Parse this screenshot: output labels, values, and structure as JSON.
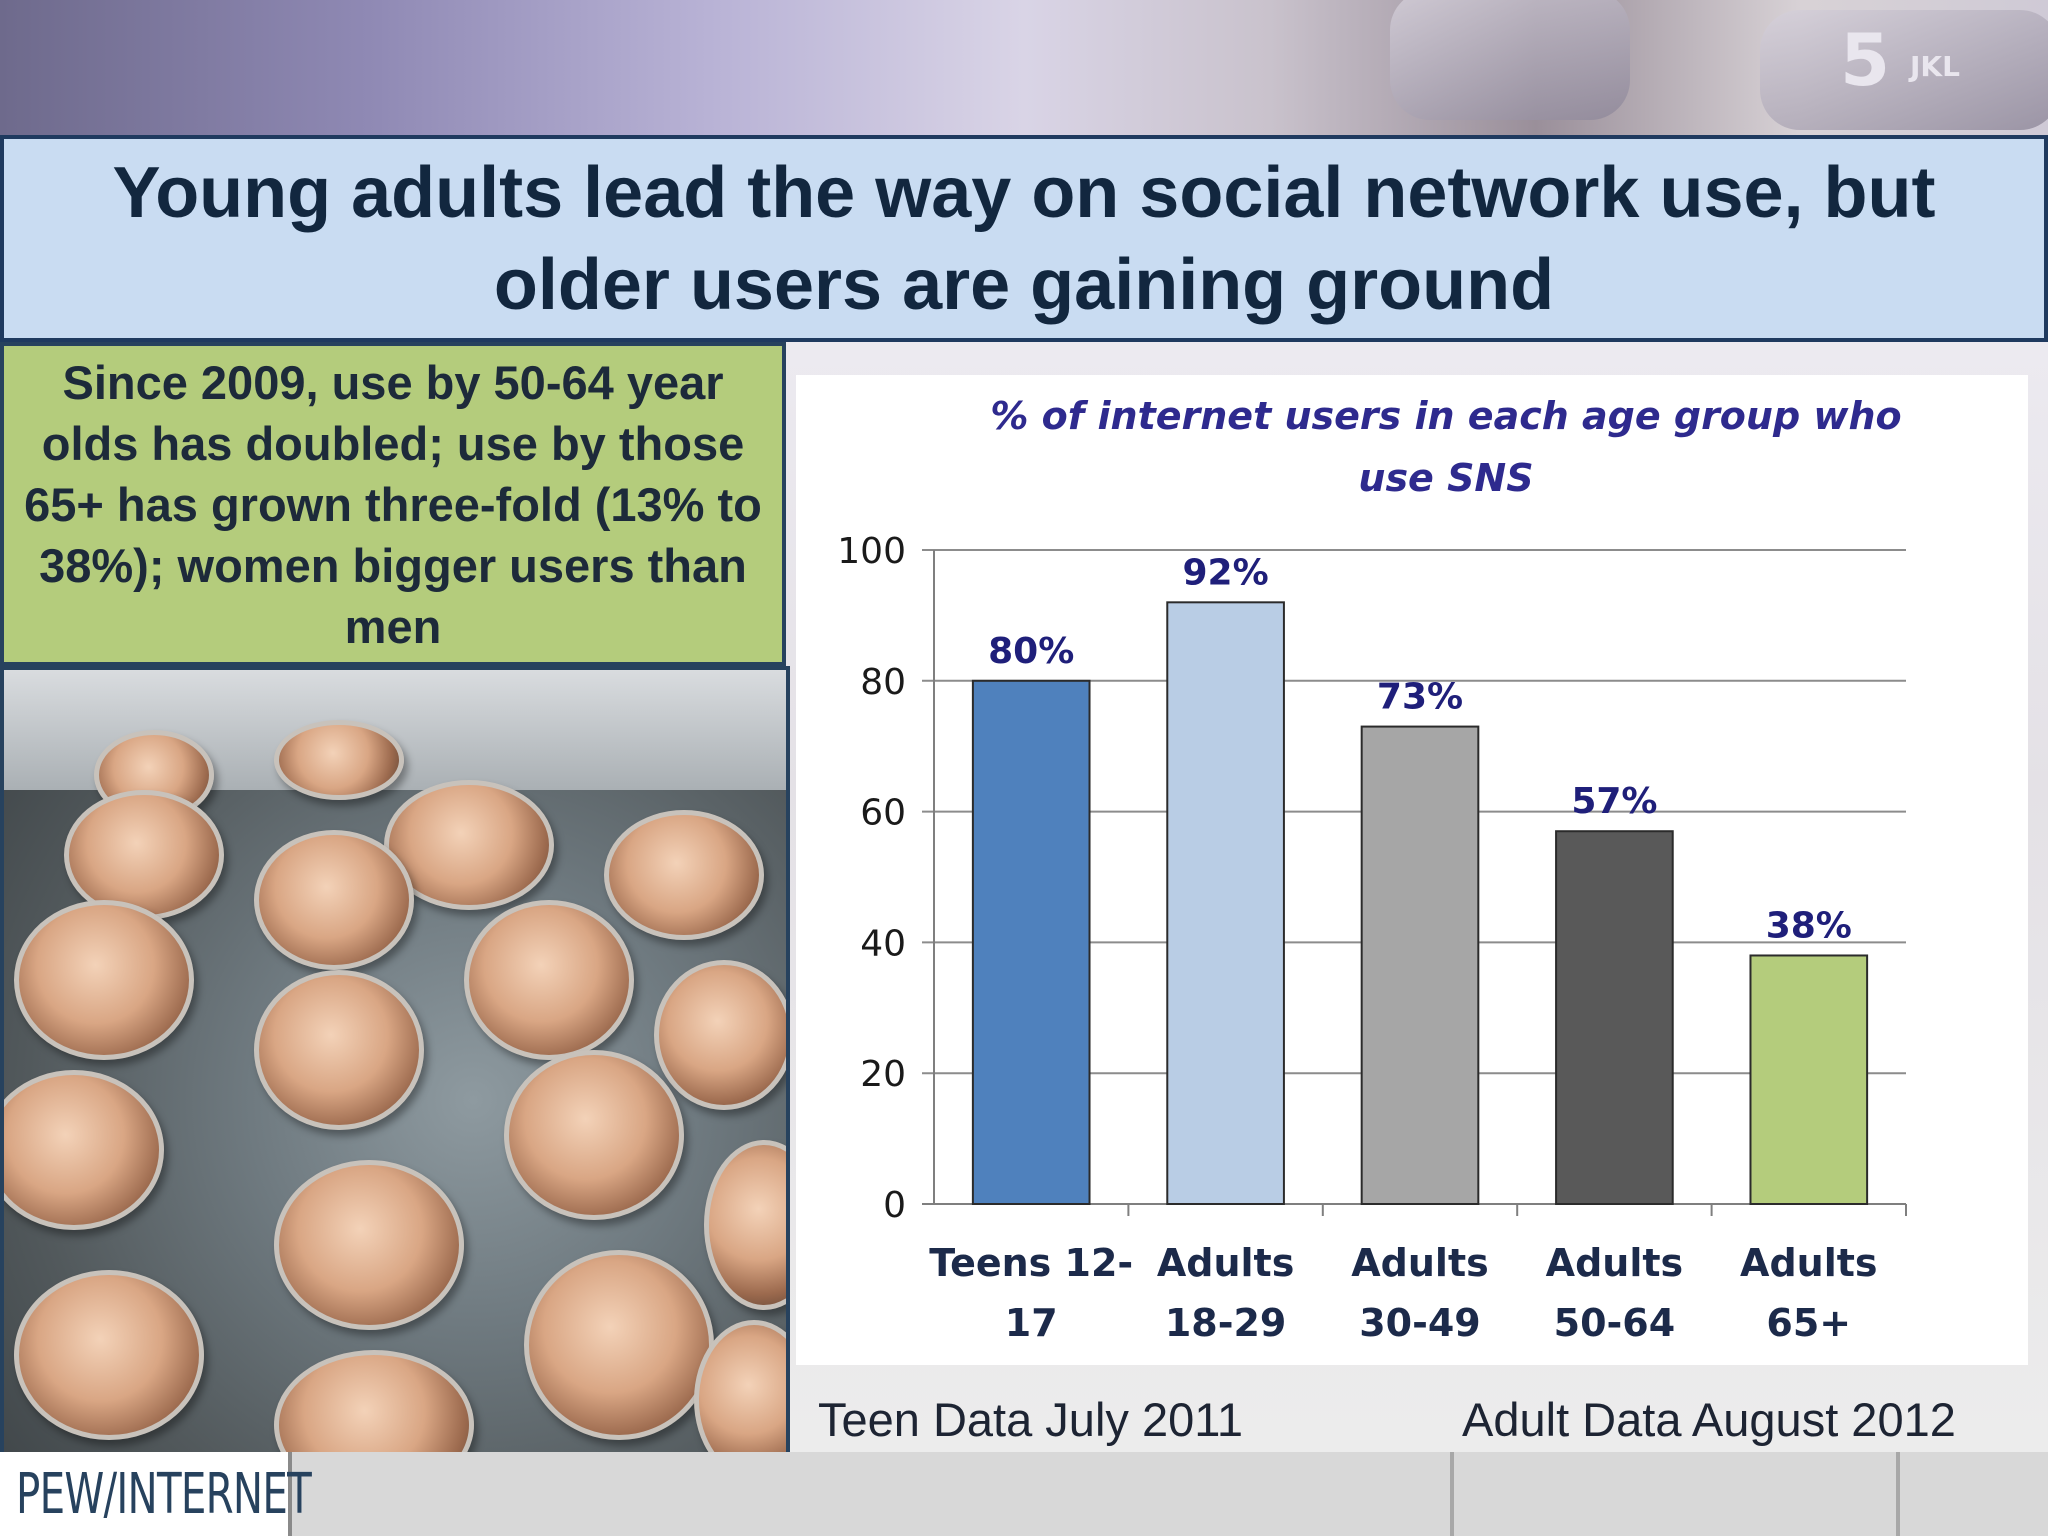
{
  "title": "Young adults lead the way on social network use, but older users are gaining ground",
  "note": "Since 2009, use by 50-64 year olds has doubled; use by those 65+ has grown three-fold (13% to 38%); women bigger users than men",
  "source_left": "Teen Data July 2011",
  "source_right": "Adult Data August 2012",
  "logo": "PEW/INTERNET",
  "decor": {
    "keypad_digit": "5",
    "keypad_letters": "JKL"
  },
  "chart_data": {
    "type": "bar",
    "title": "% of internet users in each age group who use SNS",
    "categories": [
      [
        "Teens 12-",
        "17"
      ],
      [
        "Adults",
        "18-29"
      ],
      [
        "Adults",
        "30-49"
      ],
      [
        "Adults",
        "50-64"
      ],
      [
        "Adults",
        "65+"
      ]
    ],
    "values": [
      80,
      92,
      73,
      57,
      38
    ],
    "data_labels": [
      "80%",
      "92%",
      "73%",
      "57%",
      "38%"
    ],
    "colors": [
      "#4f81bd",
      "#b9cde5",
      "#a6a6a6",
      "#595959",
      "#b4cc7c"
    ],
    "ylim": [
      0,
      100
    ],
    "yticks": [
      "0",
      "20",
      "40",
      "60",
      "80",
      "100"
    ],
    "grid": true,
    "legend": "none"
  }
}
